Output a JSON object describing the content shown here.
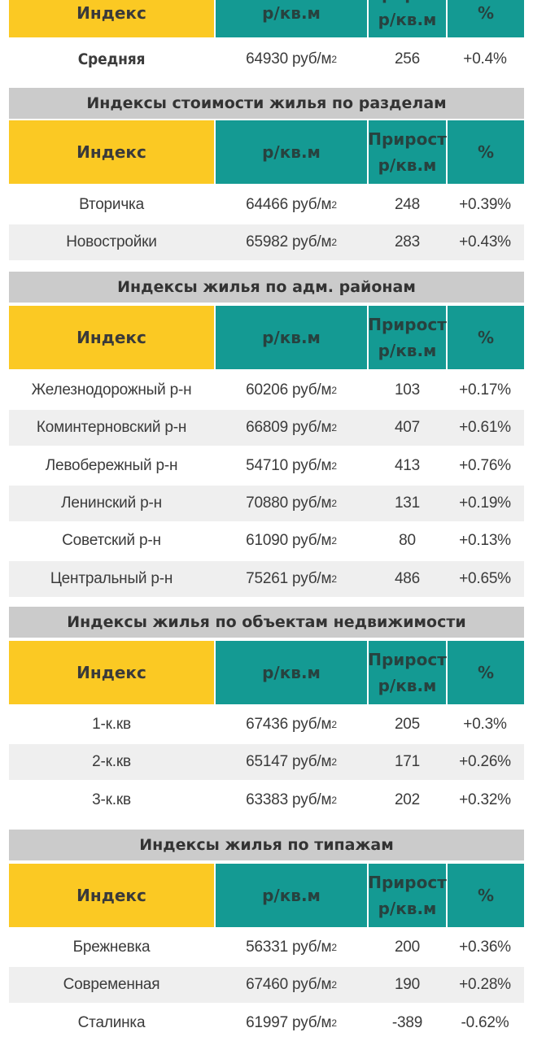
{
  "header_labels": {
    "index": "Индекс",
    "price": "р/кв.м",
    "growth": "Прирост р/кв.м",
    "growth_top": "Прирост",
    "growth_bottom": "р/кв.м",
    "pct": "%"
  },
  "average": {
    "label": "Средняя",
    "price": "64930 руб/м",
    "growth": "256",
    "pct": "+0.4%"
  },
  "sections": [
    {
      "title": "Индексы стоимости жилья по разделам",
      "rows": [
        {
          "label": "Вторичка",
          "price": "64466 руб/м",
          "growth": "248",
          "pct": "+0.39%"
        },
        {
          "label": "Новостройки",
          "price": "65982 руб/м",
          "growth": "283",
          "pct": "+0.43%"
        }
      ]
    },
    {
      "title": "Индексы жилья по адм. районам",
      "rows": [
        {
          "label": "Железнодорожный р-н",
          "price": "60206 руб/м",
          "growth": "103",
          "pct": "+0.17%"
        },
        {
          "label": "Коминтерновский р-н",
          "price": "66809 руб/м",
          "growth": "407",
          "pct": "+0.61%"
        },
        {
          "label": "Левобережный р-н",
          "price": "54710 руб/м",
          "growth": "413",
          "pct": "+0.76%"
        },
        {
          "label": "Ленинский р-н",
          "price": "70880 руб/м",
          "growth": "131",
          "pct": "+0.19%"
        },
        {
          "label": "Советский р-н",
          "price": "61090 руб/м",
          "growth": "80",
          "pct": "+0.13%"
        },
        {
          "label": "Центральный р-н",
          "price": "75261 руб/м",
          "growth": "486",
          "pct": "+0.65%"
        }
      ]
    },
    {
      "title": "Индексы жилья по объектам недвижимости",
      "rows": [
        {
          "label": "1-к.кв",
          "price": "67436 руб/м",
          "growth": "205",
          "pct": "+0.3%"
        },
        {
          "label": "2-к.кв",
          "price": "65147 руб/м",
          "growth": "171",
          "pct": "+0.26%"
        },
        {
          "label": "3-к.кв",
          "price": "63383 руб/м",
          "growth": "202",
          "pct": "+0.32%"
        }
      ]
    },
    {
      "title": "Индексы жилья по типажам",
      "rows": [
        {
          "label": "Брежневка",
          "price": "56331 руб/м",
          "growth": "200",
          "pct": "+0.36%"
        },
        {
          "label": "Современная",
          "price": "67460 руб/м",
          "growth": "190",
          "pct": "+0.28%"
        },
        {
          "label": "Сталинка",
          "price": "61997 руб/м",
          "growth": "-389",
          "pct": "-0.62%"
        }
      ]
    }
  ],
  "unit_exponent": "2",
  "colors": {
    "header_yellow": "#fbc923",
    "header_teal": "#149a93",
    "section_gray": "#cbcbcb",
    "alt_row": "#efefef"
  }
}
